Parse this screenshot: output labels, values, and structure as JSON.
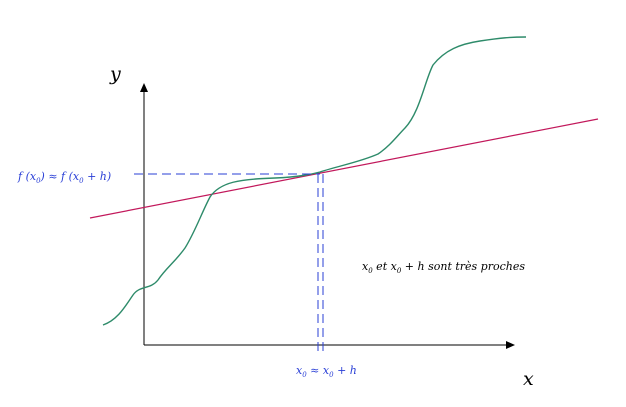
{
  "labels": {
    "y_axis": "y",
    "x_axis": "x",
    "fx": {
      "part1": "f (x",
      "sub1": "0",
      "part2": ") ≈ f (x",
      "sub2": "0",
      "part3": " + h)"
    },
    "x0": {
      "part1": "x",
      "sub1": "0",
      "part2": " ≈ x",
      "sub2": "0",
      "part3": " + h"
    },
    "note": {
      "part1": "x",
      "sub1": "0",
      "part2": " et  x",
      "sub2": "0",
      "part3": " + h sont très proches"
    }
  },
  "colors": {
    "axis": "#000000",
    "curve": "#2e8b6a",
    "secant": "#c2185b",
    "guide": "#2a3fd6",
    "guide_text": "#2a3fd6"
  }
}
